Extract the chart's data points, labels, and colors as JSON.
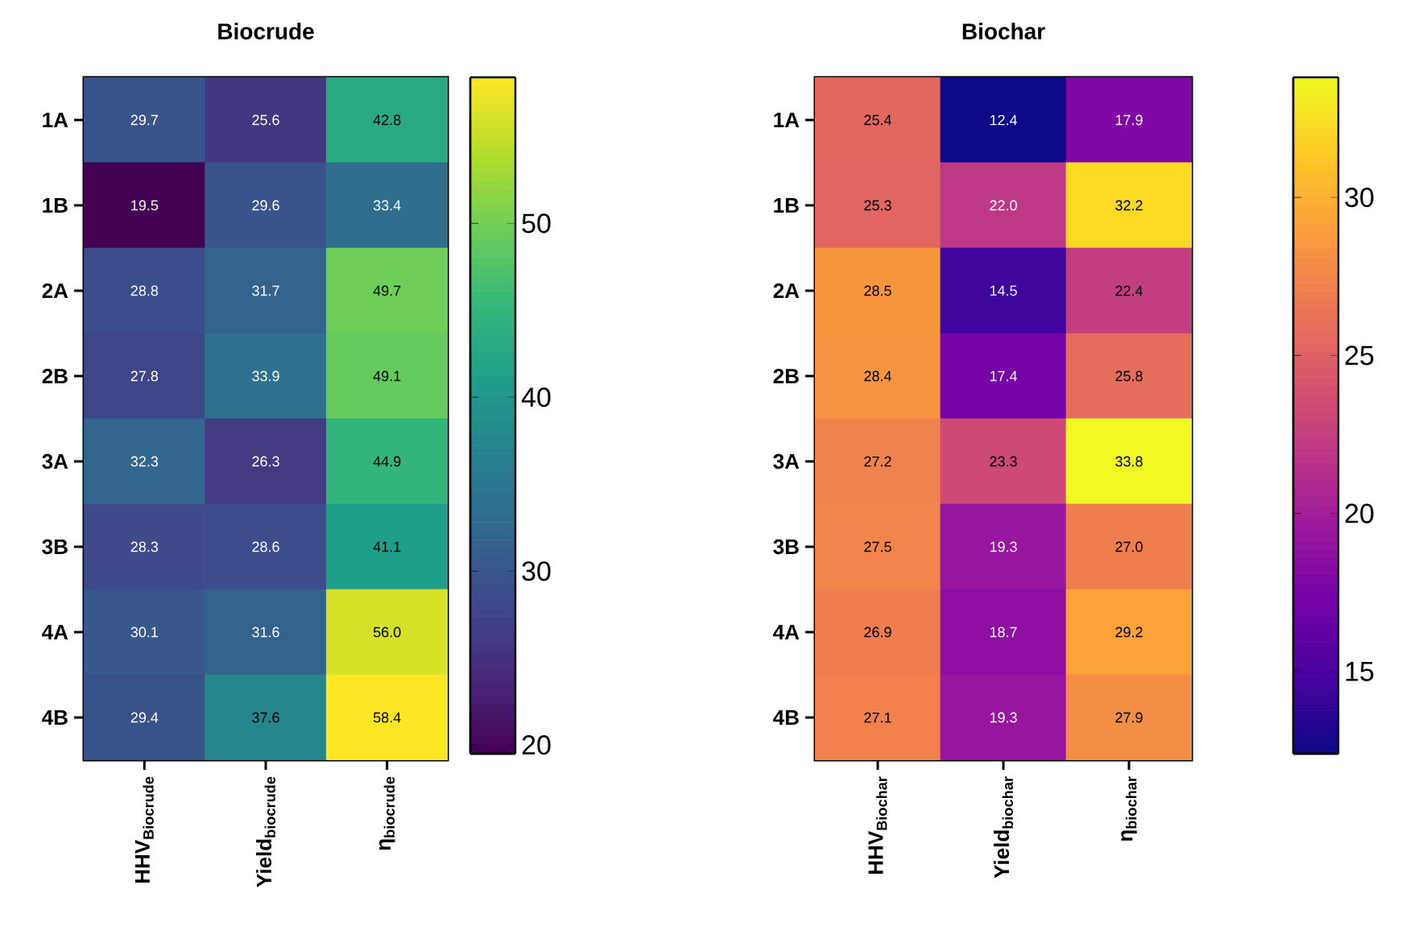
{
  "chart_data": [
    {
      "type": "heatmap",
      "title": "Biocrude",
      "categories": [
        "HHV$_{Biocrude}$",
        "Yield$_{biocrude}$",
        "η$_{biocrude}$"
      ],
      "y_categories": [
        "1A",
        "1B",
        "2A",
        "2B",
        "3A",
        "3B",
        "4A",
        "4B"
      ],
      "cells": [
        [
          29.7,
          25.6,
          42.8
        ],
        [
          19.5,
          29.6,
          33.4
        ],
        [
          28.8,
          31.7,
          49.7
        ],
        [
          27.8,
          33.9,
          49.1
        ],
        [
          32.3,
          26.3,
          44.9
        ],
        [
          28.3,
          28.6,
          41.1
        ],
        [
          30.1,
          31.6,
          56.0
        ],
        [
          29.4,
          37.6,
          58.4
        ]
      ],
      "cell_labels": [
        [
          "29.7",
          "25.6",
          "42.8"
        ],
        [
          "19.5",
          "29.6",
          "33.4"
        ],
        [
          "28.8",
          "31.7",
          "49.7"
        ],
        [
          "27.8",
          "33.9",
          "49.1"
        ],
        [
          "32.3",
          "26.3",
          "44.9"
        ],
        [
          "28.3",
          "28.6",
          "41.1"
        ],
        [
          "30.1",
          "31.6",
          "56.0"
        ],
        [
          "29.4",
          "37.6",
          "58.4"
        ]
      ],
      "clim": [
        19.5,
        58.4
      ],
      "cticks": [
        20,
        30,
        40,
        50
      ],
      "colors": [
        "#440154",
        "#482878",
        "#3e4989",
        "#31688e",
        "#26828e",
        "#1f9e89",
        "#35b779",
        "#6ece58",
        "#b5de2b",
        "#fde725"
      ]
    },
    {
      "type": "heatmap",
      "title": "Biochar",
      "categories": [
        "HHV$_{Biochar}$",
        "Yield$_{biochar}$",
        "η$_{biochar}$"
      ],
      "y_categories": [
        "1A",
        "1B",
        "2A",
        "2B",
        "3A",
        "3B",
        "4A",
        "4B"
      ],
      "cells": [
        [
          25.4,
          12.4,
          17.9
        ],
        [
          25.3,
          22.0,
          32.2
        ],
        [
          28.5,
          14.5,
          22.4
        ],
        [
          28.4,
          17.4,
          25.8
        ],
        [
          27.2,
          23.3,
          33.8
        ],
        [
          27.5,
          19.3,
          27.0
        ],
        [
          26.9,
          18.7,
          29.2
        ],
        [
          27.1,
          19.3,
          27.9
        ]
      ],
      "cell_labels": [
        [
          "25.4",
          "12.4",
          "17.9"
        ],
        [
          "25.3",
          "22.0",
          "32.2"
        ],
        [
          "28.5",
          "14.5",
          "22.4"
        ],
        [
          "28.4",
          "17.4",
          "25.8"
        ],
        [
          "27.2",
          "23.3",
          "33.8"
        ],
        [
          "27.5",
          "19.3",
          "27.0"
        ],
        [
          "26.9",
          "18.7",
          "29.2"
        ],
        [
          "27.1",
          "19.3",
          "27.9"
        ]
      ],
      "clim": [
        12.4,
        33.8
      ],
      "cticks": [
        15,
        20,
        25,
        30
      ],
      "colors": [
        "#0d0887",
        "#46039f",
        "#7201a8",
        "#9c179e",
        "#bd3786",
        "#d8576b",
        "#ed7953",
        "#fb9f3a",
        "#fdca26",
        "#f0f921"
      ]
    }
  ]
}
